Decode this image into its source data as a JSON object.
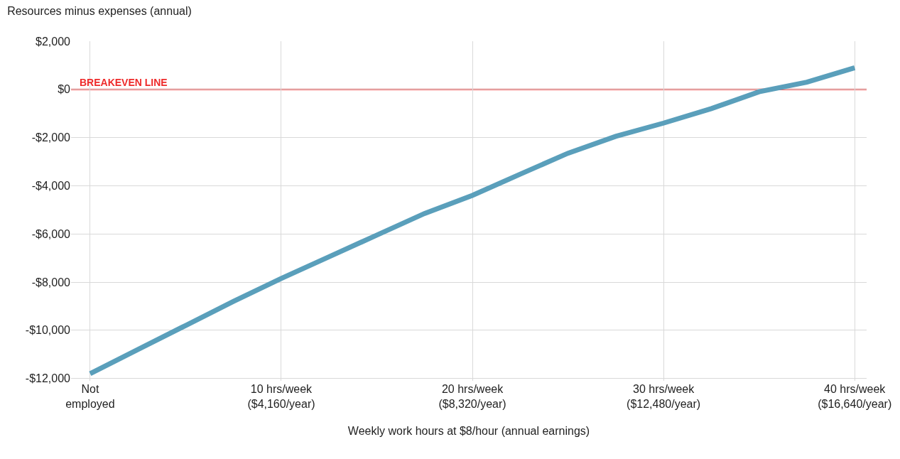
{
  "chart_data": {
    "type": "line",
    "title": "Resources minus expenses (annual)",
    "xlabel": "Weekly work hours at $8/hour (annual earnings)",
    "categories": [
      "Not\nemployed",
      null,
      null,
      null,
      "10 hrs/week\n($4,160/year)",
      null,
      null,
      null,
      "20 hrs/week\n($8,320/year)",
      null,
      null,
      null,
      "30 hrs/week\n($12,480/year)",
      null,
      null,
      null,
      "40 hrs/week\n($16,640/year)"
    ],
    "series": [
      {
        "color": "#5a9fbb",
        "values": [
          -11800,
          -10800,
          -9800,
          -8800,
          -7850,
          -6950,
          -6050,
          -5150,
          -4400,
          -3520,
          -2650,
          -1950,
          -1400,
          -800,
          -100,
          300,
          900
        ]
      }
    ],
    "ylim": [
      -12100,
      2000
    ],
    "yticks": [
      {
        "value": 2000,
        "label": "$2,000"
      },
      {
        "value": 0,
        "label": "$0"
      },
      {
        "value": -2000,
        "label": "-$2,000"
      },
      {
        "value": -4000,
        "label": "-$4,000"
      },
      {
        "value": -6000,
        "label": "-$6,000"
      },
      {
        "value": -8000,
        "label": "-$8,000"
      },
      {
        "value": -10000,
        "label": "-$10,000"
      },
      {
        "value": -12000,
        "label": "-$12,000"
      }
    ],
    "ref_lines": [
      {
        "axis": "y",
        "value": 0,
        "label": "BREAKEVEN LINE",
        "color": "#ee2a2a"
      }
    ],
    "grid": true,
    "marker": "none",
    "line_style": "solid"
  }
}
